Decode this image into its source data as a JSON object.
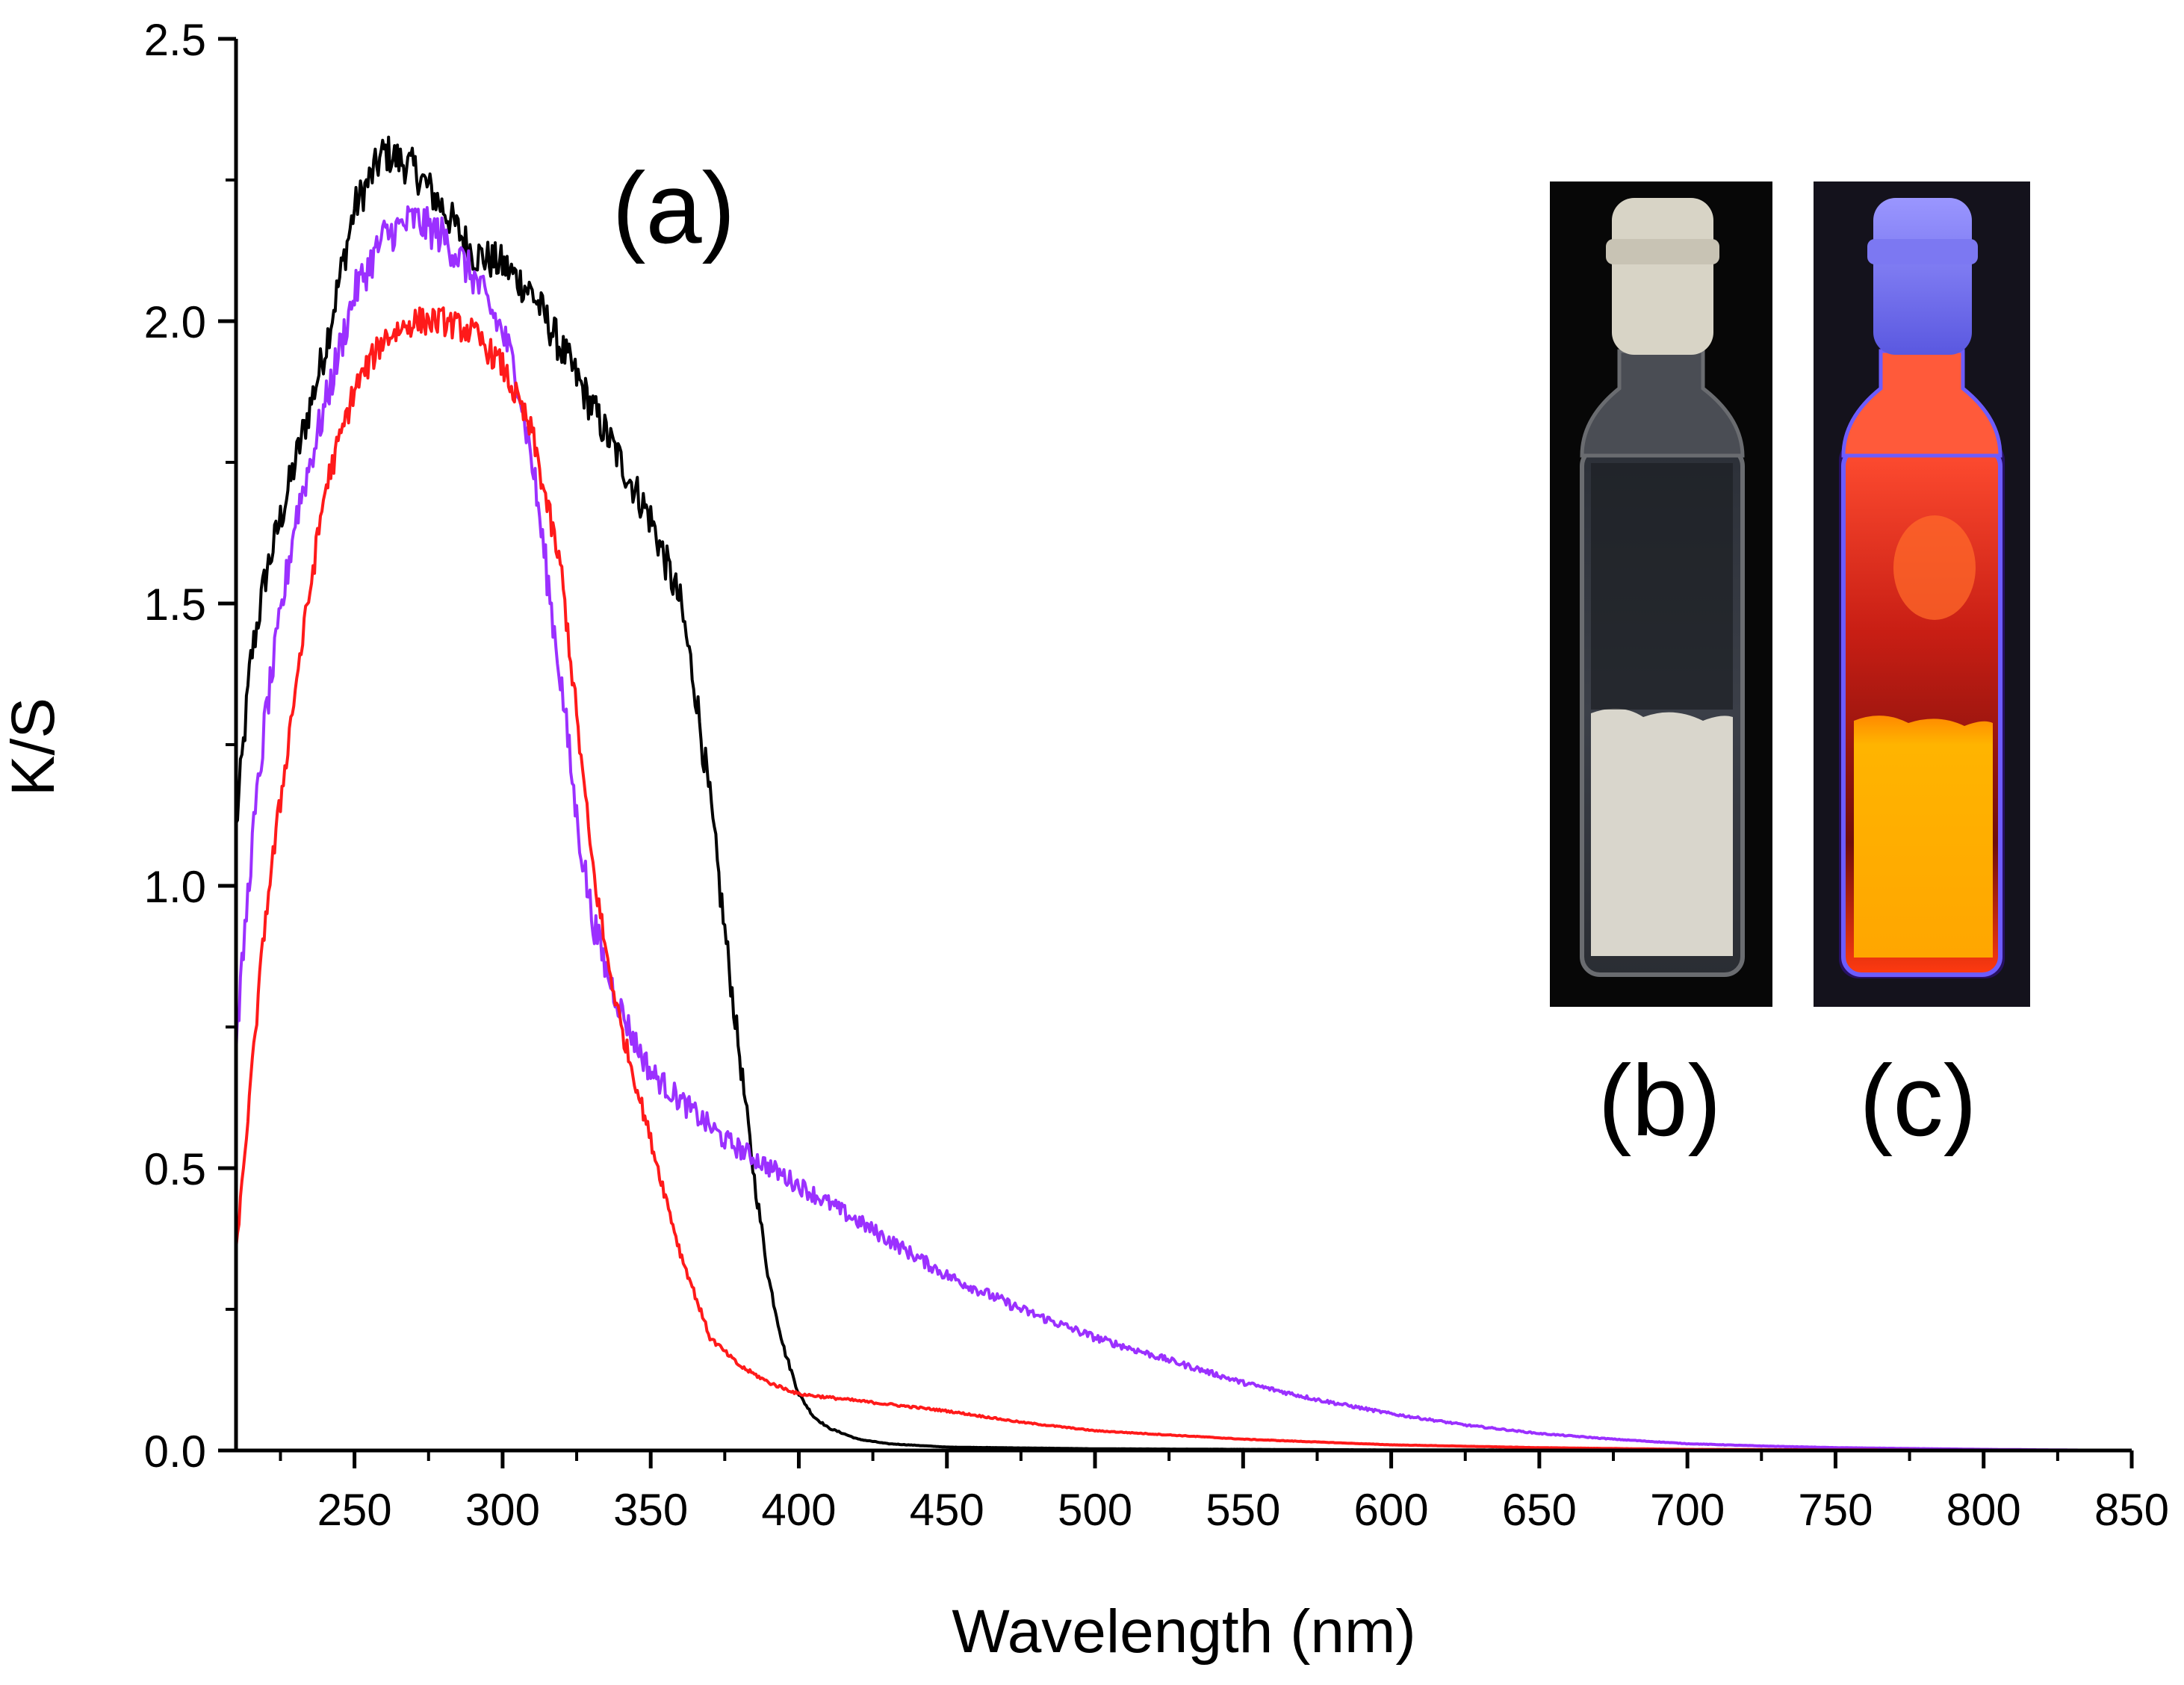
{
  "chart_data": {
    "type": "line",
    "title": "",
    "xlabel": "Wavelength (nm)",
    "ylabel": "K/S",
    "xlim": [
      210,
      850
    ],
    "ylim": [
      0,
      2.5
    ],
    "x_ticks": [
      250,
      300,
      350,
      400,
      450,
      500,
      550,
      600,
      650,
      700,
      750,
      800,
      850
    ],
    "y_ticks": [
      0.0,
      0.5,
      1.0,
      1.5,
      2.0,
      2.5
    ],
    "x_tick_labels": [
      "250",
      "300",
      "350",
      "400",
      "450",
      "500",
      "550",
      "600",
      "650",
      "700",
      "750",
      "800",
      "850"
    ],
    "y_tick_labels": [
      "0.0",
      "0.5",
      "1.0",
      "1.5",
      "2.0",
      "2.5"
    ],
    "grid": false,
    "annotations": {
      "a": "(a)",
      "b": "(b)",
      "c": "(c)"
    },
    "series": [
      {
        "name": "black",
        "color": "#000000",
        "noise": 0.035,
        "x": [
          210,
          215,
          220,
          230,
          240,
          250,
          260,
          270,
          280,
          290,
          300,
          310,
          320,
          330,
          340,
          350,
          360,
          365,
          370,
          375,
          380,
          385,
          390,
          395,
          400,
          405,
          410,
          420,
          430,
          450,
          500,
          600,
          850
        ],
        "y": [
          1.1,
          1.4,
          1.55,
          1.75,
          1.95,
          2.2,
          2.3,
          2.27,
          2.2,
          2.12,
          2.1,
          2.05,
          1.95,
          1.85,
          1.75,
          1.65,
          1.5,
          1.35,
          1.15,
          0.92,
          0.7,
          0.48,
          0.3,
          0.18,
          0.1,
          0.06,
          0.04,
          0.02,
          0.012,
          0.006,
          0.003,
          0.001,
          0.0
        ]
      },
      {
        "name": "purple",
        "color": "#9b30ff",
        "noise": 0.035,
        "x": [
          210,
          215,
          220,
          230,
          240,
          250,
          260,
          270,
          280,
          290,
          300,
          305,
          310,
          315,
          320,
          325,
          330,
          335,
          340,
          345,
          350,
          360,
          375,
          400,
          425,
          450,
          475,
          500,
          525,
          550,
          575,
          600,
          625,
          650,
          675,
          700,
          725,
          750,
          800,
          850
        ],
        "y": [
          0.72,
          1.05,
          1.3,
          1.65,
          1.85,
          2.05,
          2.15,
          2.18,
          2.15,
          2.08,
          1.98,
          1.9,
          1.75,
          1.55,
          1.35,
          1.12,
          0.95,
          0.85,
          0.78,
          0.72,
          0.67,
          0.62,
          0.55,
          0.47,
          0.39,
          0.31,
          0.25,
          0.2,
          0.16,
          0.12,
          0.09,
          0.065,
          0.045,
          0.03,
          0.02,
          0.012,
          0.008,
          0.005,
          0.002,
          0.0
        ]
      },
      {
        "name": "red",
        "color": "#ff1a1a",
        "noise": 0.025,
        "x": [
          210,
          215,
          220,
          230,
          240,
          250,
          260,
          270,
          280,
          290,
          300,
          310,
          320,
          325,
          330,
          335,
          340,
          350,
          360,
          370,
          380,
          390,
          400,
          425,
          450,
          475,
          500,
          550,
          600,
          650,
          700,
          750,
          850
        ],
        "y": [
          0.35,
          0.65,
          0.95,
          1.35,
          1.7,
          1.88,
          1.97,
          2.0,
          2.0,
          1.98,
          1.92,
          1.8,
          1.55,
          1.3,
          1.05,
          0.88,
          0.75,
          0.55,
          0.35,
          0.2,
          0.15,
          0.12,
          0.1,
          0.085,
          0.07,
          0.05,
          0.035,
          0.02,
          0.01,
          0.005,
          0.002,
          0.001,
          0.0
        ]
      }
    ]
  },
  "insets": [
    {
      "name": "vial-daylight",
      "label": "(b)",
      "cap_color": "#d8d4c6",
      "powder_color": "#d9d6cc",
      "glass_color": "#3a3c42",
      "glow_color": "#2a2a2a"
    },
    {
      "name": "vial-uv",
      "label": "(c)",
      "cap_color": "#8f8cff",
      "powder_color": "#ffb400",
      "glass_color": "#7a1010",
      "glow_color": "#ff3b2a"
    }
  ]
}
